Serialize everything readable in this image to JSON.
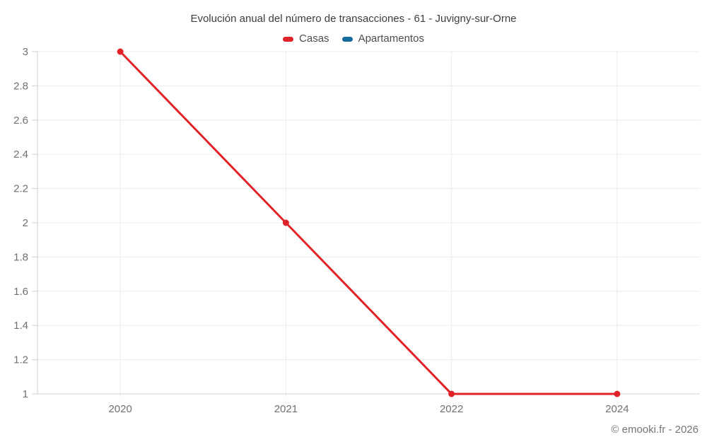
{
  "title": "Evolución anual del número de transacciones - 61 - Juvigny-sur-Orne",
  "footer": "© emooki.fr - 2026",
  "legend": [
    {
      "label": "Casas",
      "color": "#e02329"
    },
    {
      "label": "Apartamentos",
      "color": "#166d9d"
    }
  ],
  "chart_data": {
    "type": "line",
    "title": "Evolución anual del número de transacciones - 61 - Juvigny-sur-Orne",
    "x": [
      "2020",
      "2021",
      "2022",
      "2024"
    ],
    "series": [
      {
        "name": "Casas",
        "color": "#e02329",
        "values": [
          3,
          2,
          1,
          1
        ]
      },
      {
        "name": "Apartamentos",
        "color": "#166d9d",
        "values": []
      }
    ],
    "xlabel": "",
    "ylabel": "",
    "ylim": [
      1,
      3
    ],
    "yticks": [
      1,
      1.2,
      1.4,
      1.6,
      1.8,
      2,
      2.2,
      2.4,
      2.6,
      2.8,
      3
    ],
    "grid": true,
    "legend_position": "top",
    "colors": {
      "grid": "#ebebeb",
      "axis": "#d2d2d2",
      "tick_label": "#707070",
      "title": "#3d3d3d"
    }
  }
}
